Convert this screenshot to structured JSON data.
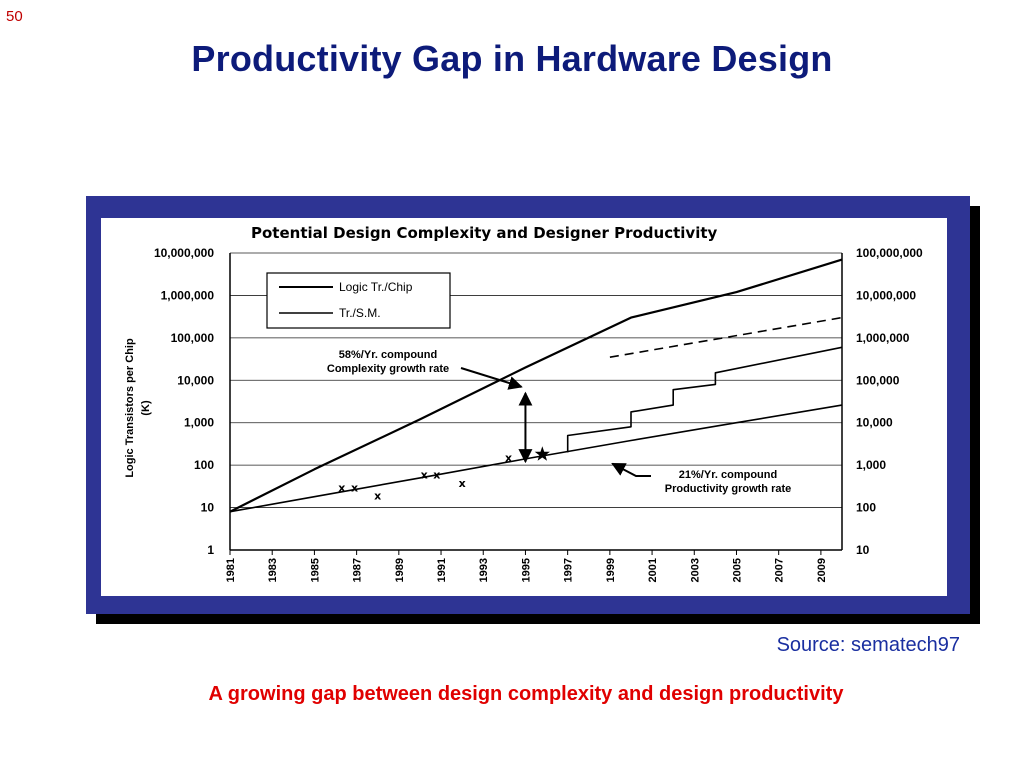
{
  "slide": {
    "number": "50",
    "title": "Productivity Gap in Hardware Design",
    "source": "Source: sematech97",
    "caption": "A growing gap between design complexity and design productivity"
  },
  "colors": {
    "title": "#0d1b7a",
    "frame": "#2e3494",
    "caption": "#e00000",
    "source": "#1a2fa0"
  },
  "chart_data": {
    "type": "line",
    "title": "Potential Design Complexity and Designer Productivity",
    "ylabel": "Logic Transistors per Chip\n(K)",
    "x_ticks": [
      "1981",
      "1983",
      "1985",
      "1987",
      "1989",
      "1991",
      "1993",
      "1995",
      "1997",
      "1999",
      "2001",
      "2003",
      "2005",
      "2007",
      "2009"
    ],
    "xlim": [
      1981,
      2010
    ],
    "y_left_ticks": [
      "1",
      "10",
      "100",
      "1,000",
      "10,000",
      "100,000",
      "1,000,000",
      "10,000,000"
    ],
    "y_right_ticks": [
      "10",
      "100",
      "1,000",
      "10,000",
      "100,000",
      "1,000,000",
      "10,000,000",
      "100,000,000"
    ],
    "yscale": "log",
    "ylim_left": [
      1,
      10000000
    ],
    "ylim_right": [
      10,
      100000000
    ],
    "grid": "horizontal",
    "legend": {
      "position": "top-left",
      "entries": [
        "Logic Tr./Chip",
        "Tr./S.M."
      ]
    },
    "series": [
      {
        "name": "Logic Tr./Chip",
        "axis": "left",
        "style": "solid",
        "x": [
          1981,
          1985,
          1990,
          1995,
          2000,
          2005,
          2010
        ],
        "y": [
          8,
          80,
          1200,
          20000,
          300000,
          1200000,
          7000000
        ]
      },
      {
        "name": "Tr./S.M.",
        "axis": "right",
        "style": "solid",
        "x": [
          1981,
          1985,
          1990,
          1995,
          2000,
          2005,
          2010
        ],
        "y": [
          80,
          180,
          500,
          1400,
          3800,
          10000,
          26000
        ]
      },
      {
        "axis": "left",
        "style": "dashed",
        "x": [
          1999,
          2010
        ],
        "y": [
          35000,
          300000
        ]
      },
      {
        "axis": "left",
        "style": "step",
        "x": [
          1997,
          1997,
          2000,
          2000,
          2002,
          2002,
          2004,
          2004,
          2010
        ],
        "y": [
          200,
          500,
          800,
          1800,
          2600,
          6000,
          8000,
          15000,
          60000
        ]
      }
    ],
    "scatter_x_marks": [
      {
        "x": 1986.3,
        "y": 30
      },
      {
        "x": 1986.9,
        "y": 30
      },
      {
        "x": 1988,
        "y": 19
      },
      {
        "x": 1990.2,
        "y": 60
      },
      {
        "x": 1990.8,
        "y": 60
      },
      {
        "x": 1992,
        "y": 38
      },
      {
        "x": 1994.2,
        "y": 150
      }
    ],
    "star_mark": {
      "x": 1995.8,
      "y": 180
    },
    "annotations": [
      {
        "text": "58%/Yr. compound\nComplexity growth rate",
        "arrow_to": {
          "x": 1995,
          "y": 7000
        }
      },
      {
        "text": "21%/Yr. compound\nProductivity growth rate",
        "arrow_to": {
          "x": 1999.5,
          "y": 150
        }
      }
    ],
    "gap_arrow": {
      "x": 1995,
      "y_top": 5000,
      "y_bottom": 120
    }
  }
}
